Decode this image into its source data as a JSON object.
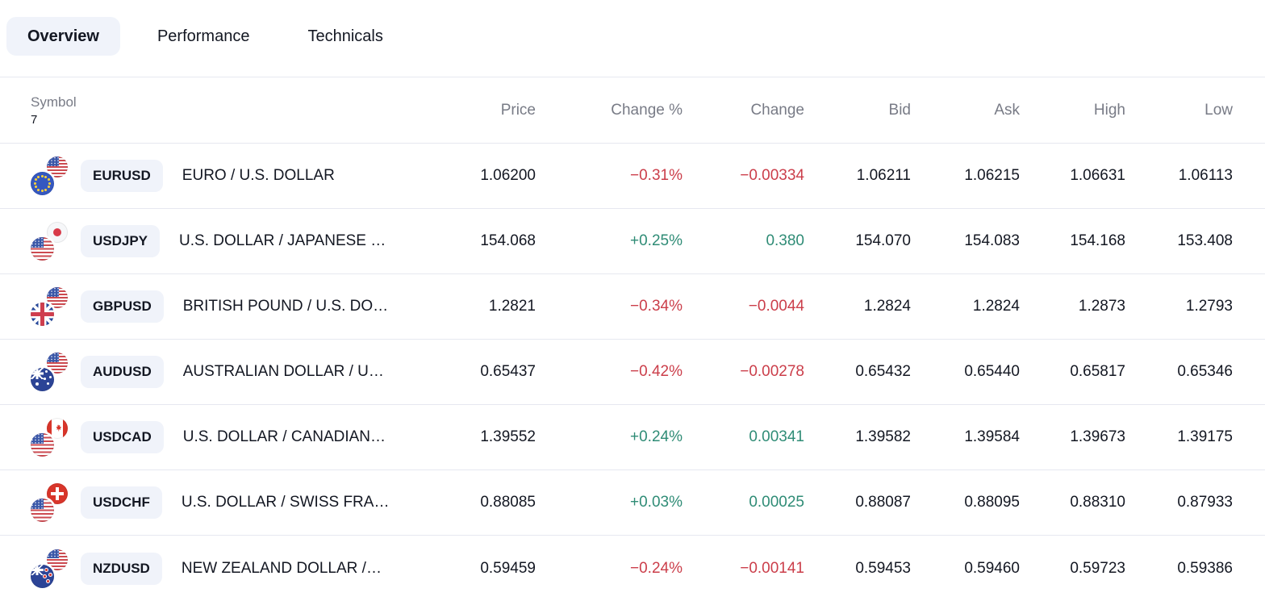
{
  "tabs": [
    {
      "label": "Overview",
      "active": true
    },
    {
      "label": "Performance",
      "active": false
    },
    {
      "label": "Technicals",
      "active": false
    }
  ],
  "table": {
    "header": {
      "symbol": "Symbol",
      "count": "7",
      "columns": [
        "Price",
        "Change %",
        "Change",
        "Bid",
        "Ask",
        "High",
        "Low"
      ]
    },
    "rows": [
      {
        "symbol": "EURUSD",
        "description": "EURO / U.S. DOLLAR",
        "base_flag": "eu",
        "quote_flag": "us",
        "price": "1.06200",
        "change_pct": "−0.31%",
        "change": "−0.00334",
        "bid": "1.06211",
        "ask": "1.06215",
        "high": "1.06631",
        "low": "1.06113",
        "direction": "down"
      },
      {
        "symbol": "USDJPY",
        "description": "U.S. DOLLAR / JAPANESE …",
        "base_flag": "us",
        "quote_flag": "jp",
        "price": "154.068",
        "change_pct": "+0.25%",
        "change": "0.380",
        "bid": "154.070",
        "ask": "154.083",
        "high": "154.168",
        "low": "153.408",
        "direction": "up"
      },
      {
        "symbol": "GBPUSD",
        "description": "BRITISH POUND / U.S. DO…",
        "base_flag": "gb",
        "quote_flag": "us",
        "price": "1.2821",
        "change_pct": "−0.34%",
        "change": "−0.0044",
        "bid": "1.2824",
        "ask": "1.2824",
        "high": "1.2873",
        "low": "1.2793",
        "direction": "down"
      },
      {
        "symbol": "AUDUSD",
        "description": "AUSTRALIAN DOLLAR / U…",
        "base_flag": "au",
        "quote_flag": "us",
        "price": "0.65437",
        "change_pct": "−0.42%",
        "change": "−0.00278",
        "bid": "0.65432",
        "ask": "0.65440",
        "high": "0.65817",
        "low": "0.65346",
        "direction": "down"
      },
      {
        "symbol": "USDCAD",
        "description": "U.S. DOLLAR / CANADIAN…",
        "base_flag": "us",
        "quote_flag": "ca",
        "price": "1.39552",
        "change_pct": "+0.24%",
        "change": "0.00341",
        "bid": "1.39582",
        "ask": "1.39584",
        "high": "1.39673",
        "low": "1.39175",
        "direction": "up"
      },
      {
        "symbol": "USDCHF",
        "description": "U.S. DOLLAR / SWISS FRA…",
        "base_flag": "us",
        "quote_flag": "ch",
        "price": "0.88085",
        "change_pct": "+0.03%",
        "change": "0.00025",
        "bid": "0.88087",
        "ask": "0.88095",
        "high": "0.88310",
        "low": "0.87933",
        "direction": "up"
      },
      {
        "symbol": "NZDUSD",
        "description": "NEW ZEALAND DOLLAR /…",
        "base_flag": "nz",
        "quote_flag": "us",
        "price": "0.59459",
        "change_pct": "−0.24%",
        "change": "−0.00141",
        "bid": "0.59453",
        "ask": "0.59460",
        "high": "0.59723",
        "low": "0.59386",
        "direction": "down"
      }
    ]
  },
  "icons": {
    "flags": [
      "eu-flag-icon",
      "us-flag-icon",
      "jp-flag-icon",
      "gb-flag-icon",
      "au-flag-icon",
      "ca-flag-icon",
      "ch-flag-icon",
      "nz-flag-icon"
    ]
  },
  "colors": {
    "up": "#2f8c76",
    "down": "#cb3e4a",
    "text": "#131722",
    "muted": "#787b86",
    "badge_bg": "#f0f3fa",
    "active_tab_bg": "#f0f3fa",
    "divider": "#e6e8f0"
  }
}
